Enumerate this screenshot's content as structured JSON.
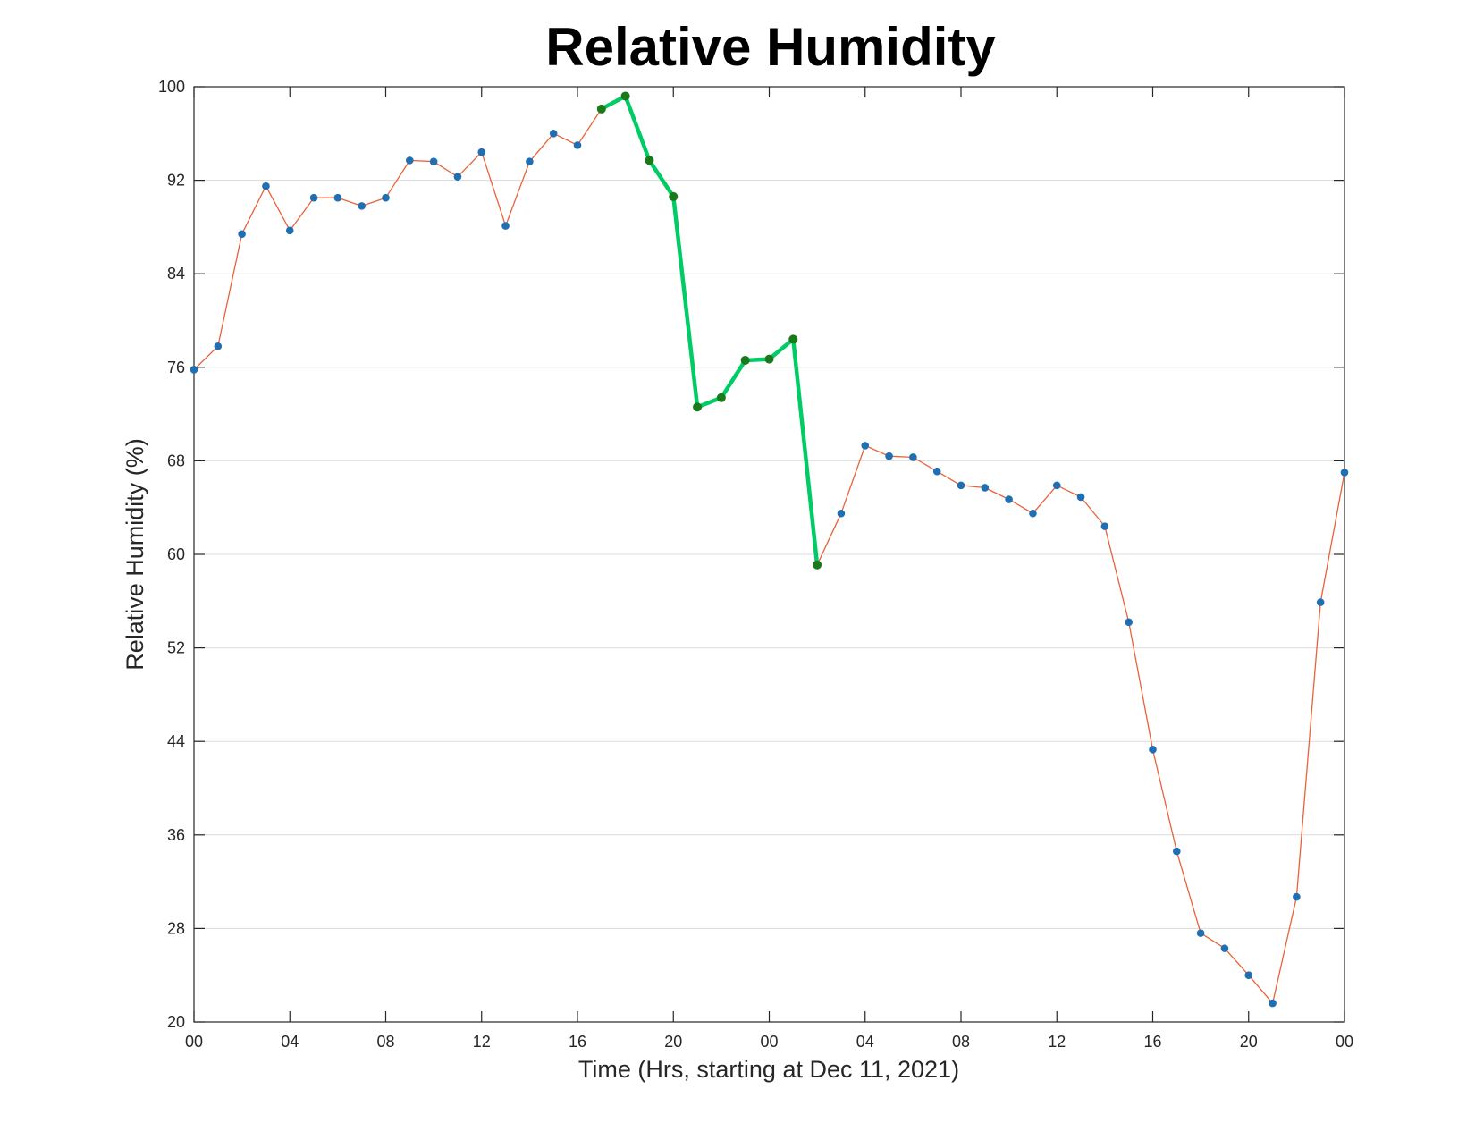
{
  "chart_data": {
    "type": "line",
    "title": "Relative Humidity",
    "xlabel": "Time (Hrs, starting at Dec 11, 2021)",
    "ylabel": "Relative Humidity (%)",
    "ylim": [
      20,
      100
    ],
    "yticks": [
      20,
      28,
      36,
      44,
      52,
      60,
      68,
      76,
      84,
      92,
      100
    ],
    "xlim": [
      0,
      48
    ],
    "xticks": [
      0,
      4,
      8,
      12,
      16,
      20,
      24,
      28,
      32,
      36,
      40,
      44,
      48
    ],
    "xtick_labels": [
      "00",
      "04",
      "08",
      "12",
      "16",
      "20",
      "00",
      "04",
      "08",
      "12",
      "16",
      "20",
      "00"
    ],
    "grid": "horizontal",
    "series": [
      {
        "color": "#e8623a",
        "marker_color": "#1f6fb2",
        "x": [
          0,
          1,
          2,
          3,
          4,
          5,
          6,
          7,
          8,
          9,
          10,
          11,
          12,
          13,
          14,
          15,
          16,
          17,
          18,
          19,
          20,
          21,
          22,
          23,
          24,
          25,
          26,
          27,
          28,
          29,
          30,
          31,
          32,
          33,
          34,
          35,
          36,
          37,
          38,
          39,
          40,
          41,
          42,
          43,
          44,
          45,
          46,
          47,
          48
        ],
        "y": [
          75.8,
          77.8,
          87.4,
          91.5,
          87.7,
          90.5,
          90.5,
          89.8,
          90.5,
          93.7,
          93.6,
          92.3,
          94.4,
          88.1,
          93.6,
          96.0,
          95.0,
          98.1,
          99.2,
          93.7,
          90.6,
          72.6,
          73.4,
          76.6,
          76.7,
          78.4,
          59.1,
          63.5,
          69.3,
          68.4,
          68.3,
          67.1,
          65.9,
          65.7,
          64.7,
          63.5,
          65.9,
          64.9,
          62.4,
          54.2,
          43.3,
          34.6,
          27.6,
          26.3,
          24.0,
          21.6,
          30.7,
          55.9,
          67.0
        ]
      },
      {
        "color": "#00cc66",
        "marker_color": "#1a7a1a",
        "x": [
          17,
          18,
          19,
          20,
          21,
          22,
          23,
          24,
          25,
          26
        ],
        "y": [
          98.1,
          99.2,
          93.7,
          90.6,
          72.6,
          73.4,
          76.6,
          76.7,
          78.4,
          59.1
        ]
      }
    ]
  }
}
